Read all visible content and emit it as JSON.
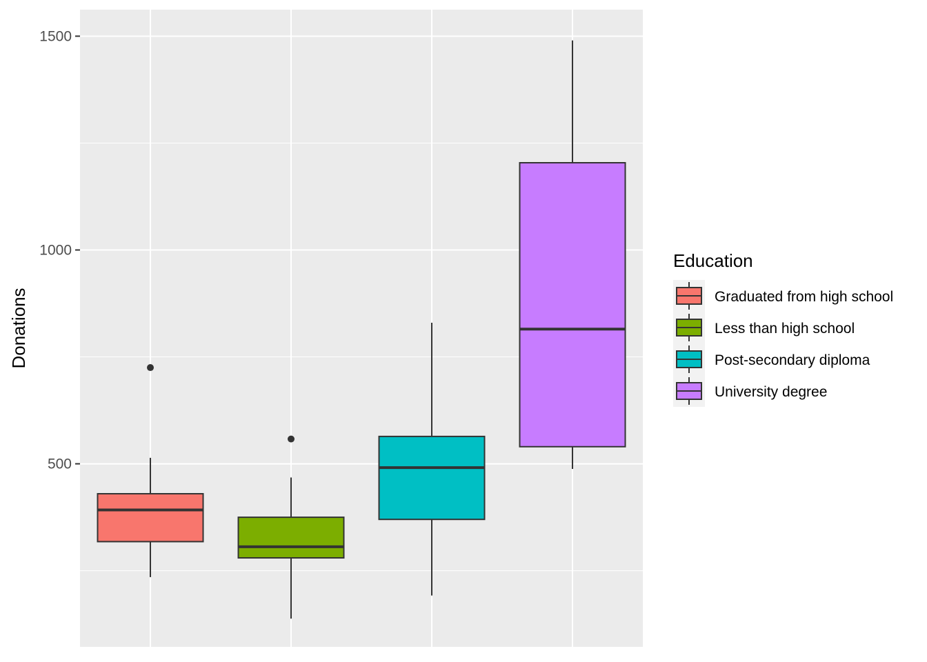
{
  "chart_data": {
    "type": "boxplot",
    "title": "",
    "xlabel": "",
    "ylabel": "Donations",
    "ylim": [
      72,
      1562
    ],
    "y_ticks": [
      500,
      1000,
      1500
    ],
    "y_tick_labels": [
      "500",
      "1000",
      "1500"
    ],
    "grid": true,
    "legend": {
      "title": "Education",
      "position": "right"
    },
    "series": [
      {
        "name": "Graduated from high school",
        "color": "#F8766D",
        "min": 235,
        "q1": 318,
        "median": 392,
        "q3": 430,
        "max": 514,
        "outliers": [
          725
        ]
      },
      {
        "name": "Less than high school",
        "color": "#7CAE00",
        "min": 138,
        "q1": 280,
        "median": 306,
        "q3": 375,
        "max": 468,
        "outliers": [
          558
        ]
      },
      {
        "name": "Post-secondary diploma",
        "color": "#00BFC4",
        "min": 192,
        "q1": 370,
        "median": 491,
        "q3": 564,
        "max": 830,
        "outliers": []
      },
      {
        "name": "University degree",
        "color": "#C77CFF",
        "min": 488,
        "q1": 540,
        "median": 815,
        "q3": 1204,
        "max": 1490,
        "outliers": []
      }
    ]
  }
}
